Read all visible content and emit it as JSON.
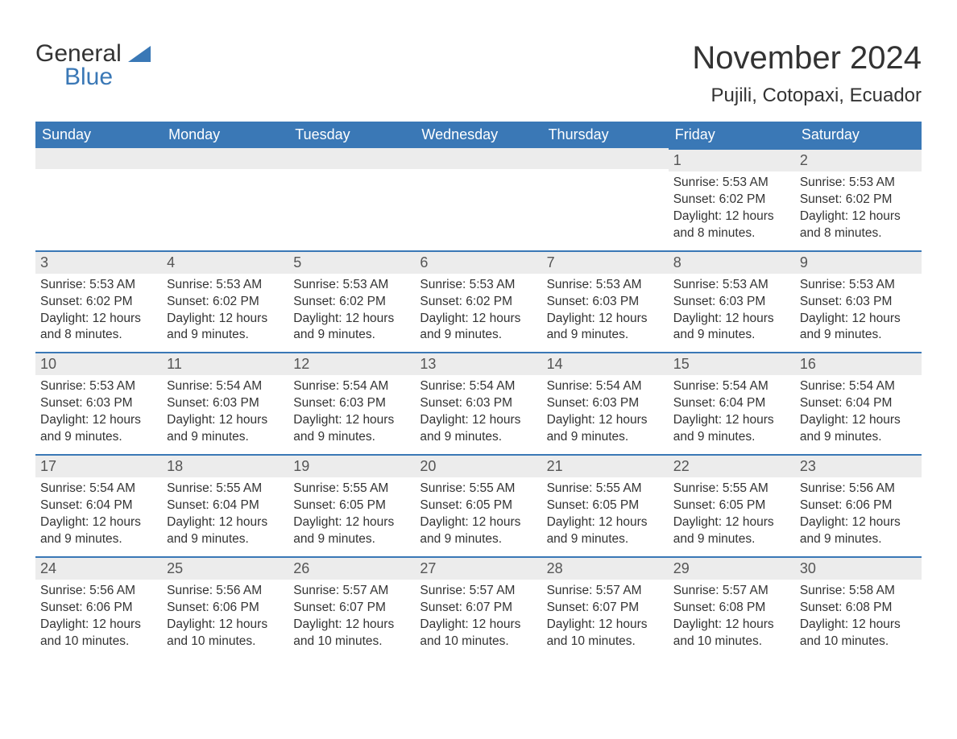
{
  "brand": {
    "text1": "General",
    "text2": "Blue",
    "color_text": "#333333",
    "color_accent": "#3a78b6"
  },
  "title": "November 2024",
  "location": "Pujili, Cotopaxi, Ecuador",
  "colors": {
    "header_bg": "#3a78b6",
    "header_text": "#ffffff",
    "datebar_bg": "#ececec",
    "datebar_border": "#3a78b6",
    "body_text": "#333333",
    "date_text": "#555555",
    "page_bg": "#ffffff"
  },
  "typography": {
    "title_fontsize": 40,
    "location_fontsize": 24,
    "header_fontsize": 18,
    "date_fontsize": 18,
    "body_fontsize": 15.5,
    "font_family": "Arial"
  },
  "layout": {
    "columns": 7,
    "rows": 5,
    "first_day_column_index": 5
  },
  "day_names": [
    "Sunday",
    "Monday",
    "Tuesday",
    "Wednesday",
    "Thursday",
    "Friday",
    "Saturday"
  ],
  "days": [
    {
      "date": "1",
      "sunrise": "Sunrise: 5:53 AM",
      "sunset": "Sunset: 6:02 PM",
      "dl1": "Daylight: 12 hours",
      "dl2": "and 8 minutes."
    },
    {
      "date": "2",
      "sunrise": "Sunrise: 5:53 AM",
      "sunset": "Sunset: 6:02 PM",
      "dl1": "Daylight: 12 hours",
      "dl2": "and 8 minutes."
    },
    {
      "date": "3",
      "sunrise": "Sunrise: 5:53 AM",
      "sunset": "Sunset: 6:02 PM",
      "dl1": "Daylight: 12 hours",
      "dl2": "and 8 minutes."
    },
    {
      "date": "4",
      "sunrise": "Sunrise: 5:53 AM",
      "sunset": "Sunset: 6:02 PM",
      "dl1": "Daylight: 12 hours",
      "dl2": "and 9 minutes."
    },
    {
      "date": "5",
      "sunrise": "Sunrise: 5:53 AM",
      "sunset": "Sunset: 6:02 PM",
      "dl1": "Daylight: 12 hours",
      "dl2": "and 9 minutes."
    },
    {
      "date": "6",
      "sunrise": "Sunrise: 5:53 AM",
      "sunset": "Sunset: 6:02 PM",
      "dl1": "Daylight: 12 hours",
      "dl2": "and 9 minutes."
    },
    {
      "date": "7",
      "sunrise": "Sunrise: 5:53 AM",
      "sunset": "Sunset: 6:03 PM",
      "dl1": "Daylight: 12 hours",
      "dl2": "and 9 minutes."
    },
    {
      "date": "8",
      "sunrise": "Sunrise: 5:53 AM",
      "sunset": "Sunset: 6:03 PM",
      "dl1": "Daylight: 12 hours",
      "dl2": "and 9 minutes."
    },
    {
      "date": "9",
      "sunrise": "Sunrise: 5:53 AM",
      "sunset": "Sunset: 6:03 PM",
      "dl1": "Daylight: 12 hours",
      "dl2": "and 9 minutes."
    },
    {
      "date": "10",
      "sunrise": "Sunrise: 5:53 AM",
      "sunset": "Sunset: 6:03 PM",
      "dl1": "Daylight: 12 hours",
      "dl2": "and 9 minutes."
    },
    {
      "date": "11",
      "sunrise": "Sunrise: 5:54 AM",
      "sunset": "Sunset: 6:03 PM",
      "dl1": "Daylight: 12 hours",
      "dl2": "and 9 minutes."
    },
    {
      "date": "12",
      "sunrise": "Sunrise: 5:54 AM",
      "sunset": "Sunset: 6:03 PM",
      "dl1": "Daylight: 12 hours",
      "dl2": "and 9 minutes."
    },
    {
      "date": "13",
      "sunrise": "Sunrise: 5:54 AM",
      "sunset": "Sunset: 6:03 PM",
      "dl1": "Daylight: 12 hours",
      "dl2": "and 9 minutes."
    },
    {
      "date": "14",
      "sunrise": "Sunrise: 5:54 AM",
      "sunset": "Sunset: 6:03 PM",
      "dl1": "Daylight: 12 hours",
      "dl2": "and 9 minutes."
    },
    {
      "date": "15",
      "sunrise": "Sunrise: 5:54 AM",
      "sunset": "Sunset: 6:04 PM",
      "dl1": "Daylight: 12 hours",
      "dl2": "and 9 minutes."
    },
    {
      "date": "16",
      "sunrise": "Sunrise: 5:54 AM",
      "sunset": "Sunset: 6:04 PM",
      "dl1": "Daylight: 12 hours",
      "dl2": "and 9 minutes."
    },
    {
      "date": "17",
      "sunrise": "Sunrise: 5:54 AM",
      "sunset": "Sunset: 6:04 PM",
      "dl1": "Daylight: 12 hours",
      "dl2": "and 9 minutes."
    },
    {
      "date": "18",
      "sunrise": "Sunrise: 5:55 AM",
      "sunset": "Sunset: 6:04 PM",
      "dl1": "Daylight: 12 hours",
      "dl2": "and 9 minutes."
    },
    {
      "date": "19",
      "sunrise": "Sunrise: 5:55 AM",
      "sunset": "Sunset: 6:05 PM",
      "dl1": "Daylight: 12 hours",
      "dl2": "and 9 minutes."
    },
    {
      "date": "20",
      "sunrise": "Sunrise: 5:55 AM",
      "sunset": "Sunset: 6:05 PM",
      "dl1": "Daylight: 12 hours",
      "dl2": "and 9 minutes."
    },
    {
      "date": "21",
      "sunrise": "Sunrise: 5:55 AM",
      "sunset": "Sunset: 6:05 PM",
      "dl1": "Daylight: 12 hours",
      "dl2": "and 9 minutes."
    },
    {
      "date": "22",
      "sunrise": "Sunrise: 5:55 AM",
      "sunset": "Sunset: 6:05 PM",
      "dl1": "Daylight: 12 hours",
      "dl2": "and 9 minutes."
    },
    {
      "date": "23",
      "sunrise": "Sunrise: 5:56 AM",
      "sunset": "Sunset: 6:06 PM",
      "dl1": "Daylight: 12 hours",
      "dl2": "and 9 minutes."
    },
    {
      "date": "24",
      "sunrise": "Sunrise: 5:56 AM",
      "sunset": "Sunset: 6:06 PM",
      "dl1": "Daylight: 12 hours",
      "dl2": "and 10 minutes."
    },
    {
      "date": "25",
      "sunrise": "Sunrise: 5:56 AM",
      "sunset": "Sunset: 6:06 PM",
      "dl1": "Daylight: 12 hours",
      "dl2": "and 10 minutes."
    },
    {
      "date": "26",
      "sunrise": "Sunrise: 5:57 AM",
      "sunset": "Sunset: 6:07 PM",
      "dl1": "Daylight: 12 hours",
      "dl2": "and 10 minutes."
    },
    {
      "date": "27",
      "sunrise": "Sunrise: 5:57 AM",
      "sunset": "Sunset: 6:07 PM",
      "dl1": "Daylight: 12 hours",
      "dl2": "and 10 minutes."
    },
    {
      "date": "28",
      "sunrise": "Sunrise: 5:57 AM",
      "sunset": "Sunset: 6:07 PM",
      "dl1": "Daylight: 12 hours",
      "dl2": "and 10 minutes."
    },
    {
      "date": "29",
      "sunrise": "Sunrise: 5:57 AM",
      "sunset": "Sunset: 6:08 PM",
      "dl1": "Daylight: 12 hours",
      "dl2": "and 10 minutes."
    },
    {
      "date": "30",
      "sunrise": "Sunrise: 5:58 AM",
      "sunset": "Sunset: 6:08 PM",
      "dl1": "Daylight: 12 hours",
      "dl2": "and 10 minutes."
    }
  ]
}
